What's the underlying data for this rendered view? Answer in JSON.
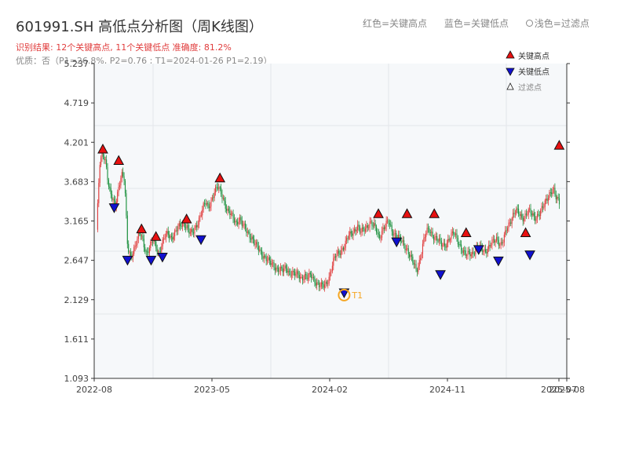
{
  "header": {
    "title": "601991.SH 高低点分析图（周K线图）",
    "result_line": "识别结果: 12个关键高点, 11个关键低点  准确度: 81.2%",
    "quality_line": "优质：否（P1=26.8%, P2=0.76 ; T1=2024-01-26 P1=2.19）",
    "top_legend": {
      "red": "红色=关键高点",
      "blue": "蓝色=关键低点",
      "light": "浅色=过滤点"
    }
  },
  "colors": {
    "up": "#e03c3c",
    "down": "#1a8f3c",
    "high_marker": "#e81010",
    "low_marker": "#1010d0",
    "t1": "#f5a623",
    "grid": "#e3e6ea",
    "plot_bg": "#f6f8fa"
  },
  "chart_data": {
    "type": "candlestick",
    "ylim": [
      1.093,
      5.237
    ],
    "y_ticks": [
      "5.237",
      "4.719",
      "4.201",
      "3.683",
      "3.165",
      "2.647",
      "2.129",
      "1.611",
      "1.093"
    ],
    "x_ticks": [
      "2022-08",
      "2023-05",
      "2024-02",
      "2024-11",
      "2025-07",
      "2025-08"
    ],
    "legend": [
      {
        "key": "high",
        "label": "关键高点"
      },
      {
        "key": "low",
        "label": "关键低点"
      },
      {
        "key": "filtered",
        "label": "过滤点"
      }
    ],
    "annotation": {
      "label": "T1",
      "date": "2024-01-26",
      "value": 2.19
    },
    "close_path": [
      [
        0,
        3.05
      ],
      [
        1,
        3.9
      ],
      [
        2,
        4.05
      ],
      [
        3,
        3.95
      ],
      [
        4,
        3.6
      ],
      [
        5,
        3.45
      ],
      [
        6,
        3.35
      ],
      [
        7,
        3.6
      ],
      [
        8,
        3.8
      ],
      [
        9,
        3.7
      ],
      [
        10,
        2.8
      ],
      [
        11,
        2.7
      ],
      [
        12,
        2.8
      ],
      [
        13,
        2.9
      ],
      [
        14,
        3.0
      ],
      [
        15,
        2.9
      ],
      [
        16,
        2.75
      ],
      [
        17,
        2.8
      ],
      [
        18,
        2.9
      ],
      [
        19,
        2.85
      ],
      [
        20,
        2.75
      ],
      [
        21,
        2.85
      ],
      [
        22,
        2.95
      ],
      [
        23,
        3.0
      ],
      [
        24,
        2.95
      ],
      [
        25,
        3.0
      ],
      [
        26,
        3.05
      ],
      [
        27,
        3.1
      ],
      [
        28,
        3.15
      ],
      [
        29,
        3.1
      ],
      [
        30,
        3.0
      ],
      [
        31,
        3.0
      ],
      [
        32,
        3.1
      ],
      [
        33,
        3.2
      ],
      [
        34,
        3.3
      ],
      [
        35,
        3.4
      ],
      [
        36,
        3.35
      ],
      [
        37,
        3.45
      ],
      [
        38,
        3.55
      ],
      [
        39,
        3.6
      ],
      [
        40,
        3.55
      ],
      [
        41,
        3.45
      ],
      [
        42,
        3.3
      ],
      [
        43,
        3.25
      ],
      [
        44,
        3.2
      ],
      [
        45,
        3.15
      ],
      [
        46,
        3.2
      ],
      [
        47,
        3.1
      ],
      [
        48,
        3.05
      ],
      [
        49,
        3.0
      ],
      [
        50,
        2.95
      ],
      [
        51,
        2.85
      ],
      [
        52,
        2.8
      ],
      [
        53,
        2.75
      ],
      [
        54,
        2.7
      ],
      [
        55,
        2.65
      ],
      [
        56,
        2.6
      ],
      [
        57,
        2.58
      ],
      [
        58,
        2.55
      ],
      [
        59,
        2.52
      ],
      [
        60,
        2.5
      ],
      [
        61,
        2.55
      ],
      [
        62,
        2.5
      ],
      [
        63,
        2.48
      ],
      [
        64,
        2.45
      ],
      [
        65,
        2.45
      ],
      [
        66,
        2.42
      ],
      [
        67,
        2.45
      ],
      [
        68,
        2.4
      ],
      [
        69,
        2.45
      ],
      [
        70,
        2.4
      ],
      [
        71,
        2.35
      ],
      [
        72,
        2.3
      ],
      [
        73,
        2.3
      ],
      [
        74,
        2.35
      ],
      [
        75,
        2.45
      ],
      [
        76,
        2.6
      ],
      [
        77,
        2.7
      ],
      [
        78,
        2.75
      ],
      [
        79,
        2.8
      ],
      [
        80,
        2.85
      ],
      [
        81,
        2.95
      ],
      [
        82,
        3.0
      ],
      [
        83,
        3.05
      ],
      [
        84,
        3.1
      ],
      [
        85,
        3.0
      ],
      [
        86,
        3.05
      ],
      [
        87,
        3.1
      ],
      [
        88,
        3.15
      ],
      [
        89,
        3.1
      ],
      [
        90,
        3.05
      ],
      [
        91,
        2.95
      ],
      [
        92,
        3.05
      ],
      [
        93,
        3.1
      ],
      [
        94,
        3.15
      ],
      [
        95,
        3.05
      ],
      [
        96,
        3.0
      ],
      [
        97,
        2.95
      ],
      [
        98,
        2.9
      ],
      [
        99,
        2.85
      ],
      [
        100,
        2.8
      ],
      [
        101,
        2.7
      ],
      [
        102,
        2.6
      ],
      [
        103,
        2.5
      ],
      [
        104,
        2.65
      ],
      [
        105,
        2.85
      ],
      [
        106,
        3.0
      ],
      [
        107,
        3.05
      ],
      [
        108,
        3.0
      ],
      [
        109,
        2.95
      ],
      [
        110,
        2.9
      ],
      [
        111,
        2.85
      ],
      [
        112,
        2.85
      ],
      [
        113,
        2.9
      ],
      [
        114,
        2.95
      ],
      [
        115,
        3.0
      ],
      [
        116,
        2.95
      ],
      [
        117,
        2.85
      ],
      [
        118,
        2.75
      ],
      [
        119,
        2.7
      ],
      [
        120,
        2.75
      ],
      [
        121,
        2.75
      ],
      [
        122,
        2.78
      ],
      [
        123,
        2.8
      ],
      [
        124,
        2.8
      ],
      [
        125,
        2.78
      ],
      [
        126,
        2.8
      ],
      [
        127,
        2.85
      ],
      [
        128,
        2.9
      ],
      [
        129,
        2.95
      ],
      [
        130,
        2.85
      ],
      [
        131,
        2.9
      ],
      [
        132,
        3.05
      ],
      [
        133,
        3.15
      ],
      [
        134,
        3.25
      ],
      [
        135,
        3.3
      ],
      [
        136,
        3.25
      ],
      [
        137,
        3.2
      ],
      [
        138,
        3.25
      ],
      [
        139,
        3.3
      ],
      [
        140,
        3.25
      ],
      [
        141,
        3.2
      ],
      [
        142,
        3.25
      ],
      [
        143,
        3.3
      ],
      [
        144,
        3.35
      ],
      [
        145,
        3.45
      ],
      [
        146,
        3.55
      ],
      [
        147,
        3.6
      ],
      [
        148,
        3.45
      ],
      [
        149,
        3.4
      ]
    ],
    "key_highs": [
      {
        "x": 5.7,
        "value": 4.1
      },
      {
        "x": 20.1,
        "value": 3.95
      },
      {
        "x": 40.8,
        "value": 3.05
      },
      {
        "x": 53.9,
        "value": 2.95
      },
      {
        "x": 81.7,
        "value": 3.18
      },
      {
        "x": 112,
        "value": 3.72
      },
      {
        "x": 255.8,
        "value": 3.25
      },
      {
        "x": 281.8,
        "value": 3.25
      },
      {
        "x": 306.5,
        "value": 3.25
      },
      {
        "x": 335.4,
        "value": 3.0
      },
      {
        "x": 389.4,
        "value": 3.0
      },
      {
        "x": 419.9,
        "value": 4.15
      }
    ],
    "key_lows": [
      {
        "x": 16,
        "value": 3.35
      },
      {
        "x": 28.1,
        "value": 2.66
      },
      {
        "x": 49.5,
        "value": 2.66
      },
      {
        "x": 59.8,
        "value": 2.7
      },
      {
        "x": 94.8,
        "value": 2.93
      },
      {
        "x": 224.7,
        "value": 2.23
      },
      {
        "x": 272.3,
        "value": 2.9
      },
      {
        "x": 312.1,
        "value": 2.47
      },
      {
        "x": 346.8,
        "value": 2.8
      },
      {
        "x": 364.7,
        "value": 2.65
      },
      {
        "x": 393.3,
        "value": 2.73
      }
    ],
    "filtered_points": []
  }
}
